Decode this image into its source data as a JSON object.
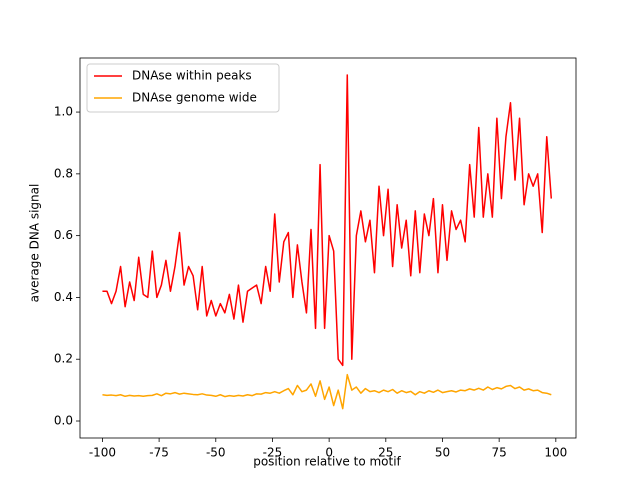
{
  "chart_data": {
    "type": "line",
    "xlabel": "position relative to motif",
    "ylabel": "average DNA signal",
    "x": [
      -100,
      -98,
      -96,
      -94,
      -92,
      -90,
      -88,
      -86,
      -84,
      -82,
      -80,
      -78,
      -76,
      -74,
      -72,
      -70,
      -68,
      -66,
      -64,
      -62,
      -60,
      -58,
      -56,
      -54,
      -52,
      -50,
      -48,
      -46,
      -44,
      -42,
      -40,
      -38,
      -36,
      -34,
      -32,
      -30,
      -28,
      -26,
      -24,
      -22,
      -20,
      -18,
      -16,
      -14,
      -12,
      -10,
      -8,
      -6,
      -4,
      -2,
      0,
      2,
      4,
      6,
      8,
      10,
      12,
      14,
      16,
      18,
      20,
      22,
      24,
      26,
      28,
      30,
      32,
      34,
      36,
      38,
      40,
      42,
      44,
      46,
      48,
      50,
      52,
      54,
      56,
      58,
      60,
      62,
      64,
      66,
      68,
      70,
      72,
      74,
      76,
      78,
      80,
      82,
      84,
      86,
      88,
      90,
      92,
      94,
      96,
      98
    ],
    "series": [
      {
        "name": "DNAse within peaks",
        "color": "#ff0000",
        "values": [
          0.42,
          0.42,
          0.38,
          0.42,
          0.5,
          0.37,
          0.45,
          0.39,
          0.53,
          0.41,
          0.4,
          0.55,
          0.4,
          0.44,
          0.52,
          0.42,
          0.5,
          0.61,
          0.44,
          0.5,
          0.47,
          0.36,
          0.5,
          0.34,
          0.39,
          0.34,
          0.38,
          0.35,
          0.41,
          0.33,
          0.44,
          0.32,
          0.42,
          0.43,
          0.44,
          0.38,
          0.5,
          0.42,
          0.67,
          0.45,
          0.58,
          0.61,
          0.4,
          0.57,
          0.45,
          0.35,
          0.62,
          0.3,
          0.83,
          0.3,
          0.6,
          0.55,
          0.2,
          0.18,
          1.12,
          0.2,
          0.6,
          0.68,
          0.58,
          0.65,
          0.48,
          0.76,
          0.6,
          0.75,
          0.5,
          0.7,
          0.56,
          0.65,
          0.47,
          0.68,
          0.48,
          0.67,
          0.6,
          0.72,
          0.48,
          0.7,
          0.52,
          0.68,
          0.62,
          0.65,
          0.58,
          0.83,
          0.66,
          0.95,
          0.66,
          0.8,
          0.66,
          0.98,
          0.72,
          0.92,
          1.03,
          0.78,
          0.98,
          0.7,
          0.8,
          0.76,
          0.8,
          0.61,
          0.92,
          0.72
        ]
      },
      {
        "name": "DNAse genome wide",
        "color": "#ffa500",
        "values": [
          0.085,
          0.083,
          0.084,
          0.082,
          0.085,
          0.08,
          0.083,
          0.081,
          0.082,
          0.08,
          0.082,
          0.083,
          0.088,
          0.082,
          0.09,
          0.088,
          0.092,
          0.087,
          0.09,
          0.088,
          0.086,
          0.085,
          0.088,
          0.084,
          0.083,
          0.08,
          0.085,
          0.079,
          0.082,
          0.08,
          0.083,
          0.081,
          0.085,
          0.082,
          0.088,
          0.087,
          0.092,
          0.09,
          0.095,
          0.09,
          0.098,
          0.105,
          0.085,
          0.115,
          0.095,
          0.1,
          0.12,
          0.08,
          0.13,
          0.07,
          0.11,
          0.05,
          0.1,
          0.04,
          0.15,
          0.1,
          0.11,
          0.09,
          0.105,
          0.095,
          0.098,
          0.092,
          0.1,
          0.095,
          0.102,
          0.09,
          0.098,
          0.092,
          0.096,
          0.085,
          0.095,
          0.09,
          0.098,
          0.093,
          0.1,
          0.092,
          0.095,
          0.098,
          0.094,
          0.1,
          0.098,
          0.104,
          0.1,
          0.106,
          0.1,
          0.11,
          0.102,
          0.108,
          0.104,
          0.112,
          0.115,
          0.105,
          0.11,
          0.1,
          0.104,
          0.098,
          0.1,
          0.092,
          0.09,
          0.085
        ]
      }
    ],
    "xlim": [
      -109.9,
      108.9
    ],
    "ylim": [
      -0.055,
      1.175
    ],
    "xticks": [
      -100,
      -75,
      -50,
      -25,
      0,
      25,
      50,
      75,
      100
    ],
    "yticks": [
      {
        "value": 0,
        "label": "0.0"
      },
      0.2,
      0.4,
      0.6,
      0.8,
      {
        "value": 1,
        "label": "1.0"
      }
    ],
    "legend": "upper left"
  }
}
